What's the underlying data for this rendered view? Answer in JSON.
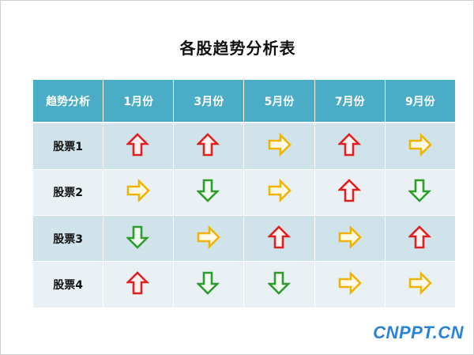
{
  "title": "各股趋势分析表",
  "table": {
    "corner_header": "趋势分析",
    "columns": [
      "1月份",
      "3月份",
      "5月份",
      "7月份",
      "9月份"
    ],
    "rows": [
      {
        "label": "股票1",
        "trends": [
          "up",
          "up",
          "right",
          "up",
          "right"
        ]
      },
      {
        "label": "股票2",
        "trends": [
          "right",
          "down",
          "right",
          "up",
          "down"
        ]
      },
      {
        "label": "股票3",
        "trends": [
          "down",
          "right",
          "up",
          "right",
          "up"
        ]
      },
      {
        "label": "股票4",
        "trends": [
          "up",
          "down",
          "down",
          "right",
          "right"
        ]
      }
    ]
  },
  "legend_colors": {
    "up": "#e02020",
    "right": "#f0b400",
    "down": "#2e9c2e"
  },
  "colors": {
    "header_bg": "#4bacc6",
    "row_odd_bg": "#d0e3ea",
    "row_even_bg": "#e9f1f5"
  },
  "watermark": "CNPPT.CN"
}
